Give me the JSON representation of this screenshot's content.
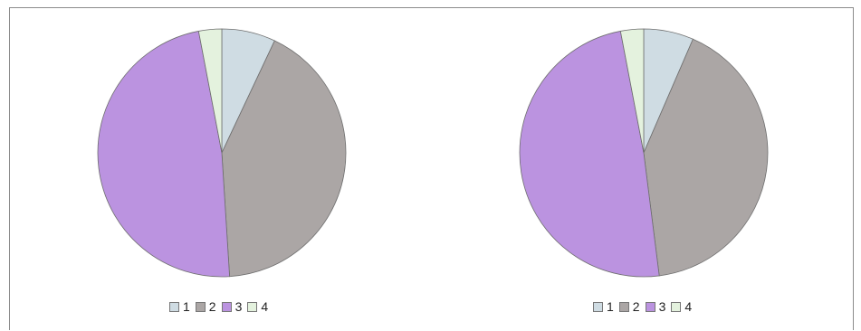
{
  "chart_data": [
    {
      "type": "pie",
      "categories": [
        "1",
        "2",
        "3",
        "4"
      ],
      "values": [
        7,
        42,
        48,
        3
      ],
      "colors": [
        "#cfdce3",
        "#aba6a5",
        "#bb93e0",
        "#e4f2de"
      ],
      "legend": "bottom",
      "title": ""
    },
    {
      "type": "pie",
      "categories": [
        "1",
        "2",
        "3",
        "4"
      ],
      "values": [
        6.5,
        41.5,
        49,
        3
      ],
      "colors": [
        "#cfdce3",
        "#aba6a5",
        "#bb93e0",
        "#e4f2de"
      ],
      "legend": "bottom",
      "title": ""
    }
  ]
}
